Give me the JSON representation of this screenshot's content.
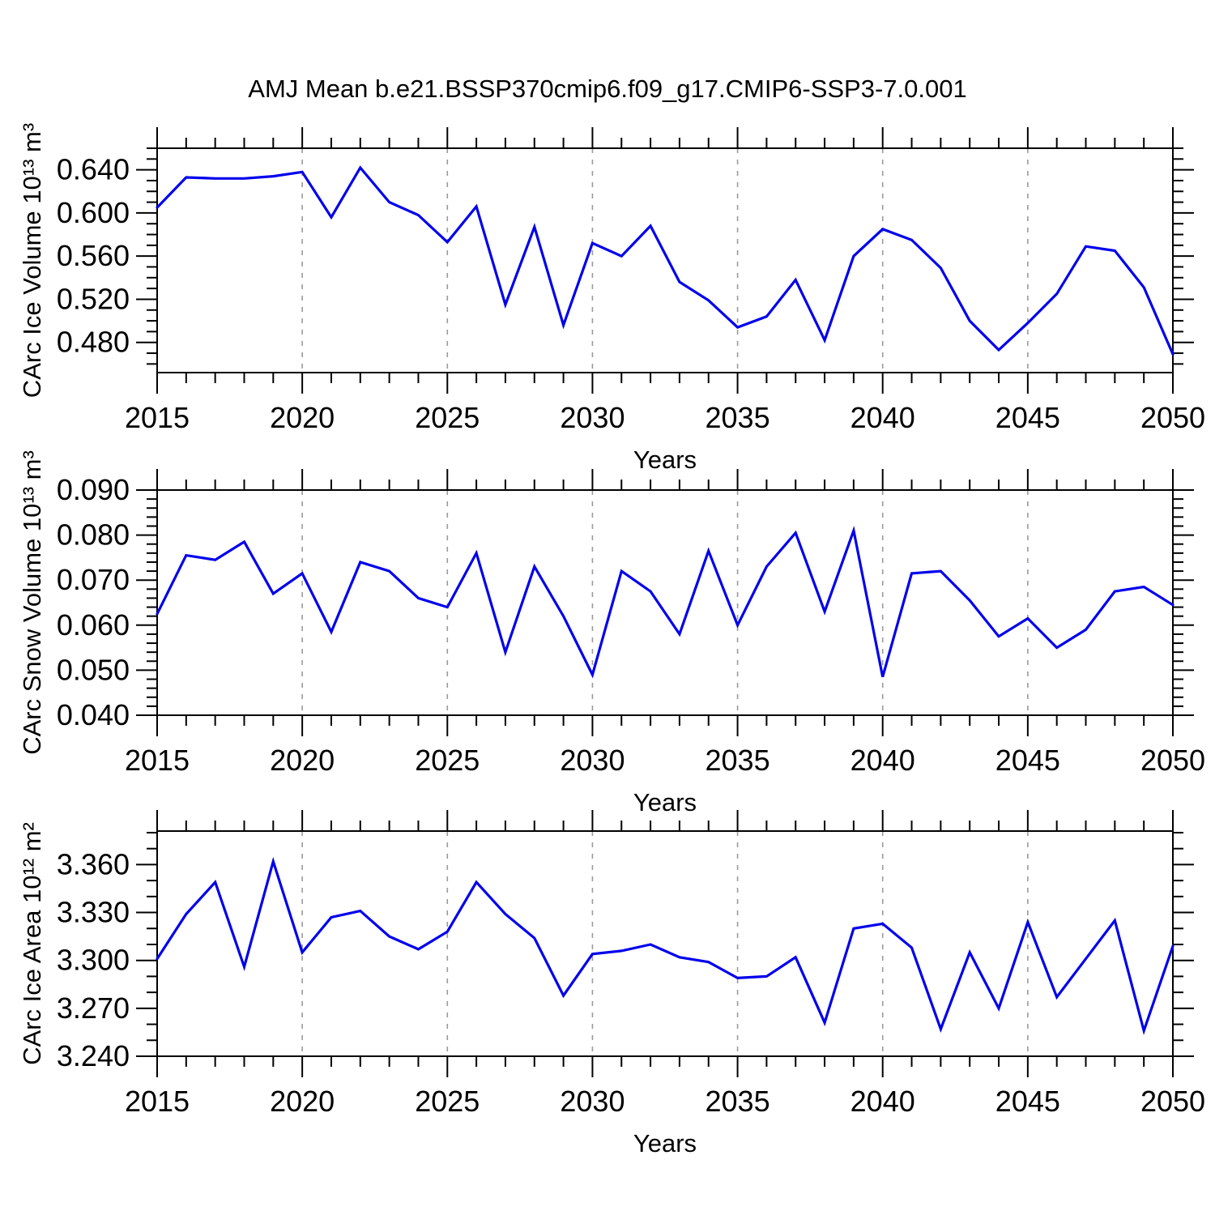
{
  "title": "AMJ Mean b.e21.BSSP370cmip6.f09_g17.CMIP6-SSP3-7.0.001",
  "chart_data": {
    "type": "line",
    "title": "AMJ Mean b.e21.BSSP370cmip6.f09_g17.CMIP6-SSP3-7.0.001",
    "xlabel": "Years",
    "x": [
      2015,
      2016,
      2017,
      2018,
      2019,
      2020,
      2021,
      2022,
      2023,
      2024,
      2025,
      2026,
      2027,
      2028,
      2029,
      2030,
      2031,
      2032,
      2033,
      2034,
      2035,
      2036,
      2037,
      2038,
      2039,
      2040,
      2041,
      2042,
      2043,
      2044,
      2045,
      2046,
      2047,
      2048,
      2049,
      2050
    ],
    "xlim": [
      2015,
      2050
    ],
    "x_major_ticks": [
      2015,
      2020,
      2025,
      2030,
      2035,
      2040,
      2045,
      2050
    ],
    "x_tick_labels": [
      "2015",
      "2020",
      "2025",
      "2030",
      "2035",
      "2040",
      "2045",
      "2050"
    ],
    "gridline_years": [
      2020,
      2025,
      2030,
      2035,
      2040,
      2045
    ],
    "grid_on": true,
    "legend": "none",
    "line_color": "#0000EC",
    "grid_color": "#9a9a9a",
    "axis_color": "#000000",
    "panels": [
      {
        "name": "carc-ice-volume",
        "ylabel": "CArc Ice Volume 10¹³ m³",
        "xlabel": "Years",
        "ylim": [
          0.452,
          0.66
        ],
        "y_major_ticks": [
          0.48,
          0.52,
          0.56,
          0.6,
          0.64
        ],
        "y_tick_labels": [
          "0.480",
          "0.520",
          "0.560",
          "0.600",
          "0.640"
        ],
        "y_minor_step": 0.01,
        "values": [
          0.605,
          0.633,
          0.632,
          0.632,
          0.634,
          0.638,
          0.596,
          0.642,
          0.61,
          0.598,
          0.573,
          0.606,
          0.515,
          0.587,
          0.496,
          0.572,
          0.56,
          0.588,
          0.536,
          0.519,
          0.494,
          0.504,
          0.538,
          0.482,
          0.56,
          0.585,
          0.575,
          0.549,
          0.5,
          0.473,
          0.498,
          0.525,
          0.569,
          0.565,
          0.531,
          0.469
        ]
      },
      {
        "name": "carc-snow-volume",
        "ylabel": "CArc Snow Volume 10¹³ m³",
        "xlabel": "Years",
        "ylim": [
          0.04,
          0.09
        ],
        "y_major_ticks": [
          0.04,
          0.05,
          0.06,
          0.07,
          0.08,
          0.09
        ],
        "y_tick_labels": [
          "0.040",
          "0.050",
          "0.060",
          "0.070",
          "0.080",
          "0.090"
        ],
        "y_minor_step": 0.002,
        "values": [
          0.0625,
          0.0755,
          0.0745,
          0.0785,
          0.067,
          0.0715,
          0.0585,
          0.074,
          0.072,
          0.066,
          0.064,
          0.076,
          0.054,
          0.073,
          0.062,
          0.049,
          0.072,
          0.0675,
          0.058,
          0.0765,
          0.06,
          0.073,
          0.0805,
          0.063,
          0.081,
          0.0485,
          0.0715,
          0.072,
          0.0655,
          0.0575,
          0.0615,
          0.055,
          0.059,
          0.0675,
          0.0685,
          0.0645
        ]
      },
      {
        "name": "carc-ice-area",
        "ylabel": "CArc Ice Area 10¹² m²",
        "xlabel": "Years",
        "ylim": [
          3.24,
          3.381
        ],
        "y_major_ticks": [
          3.24,
          3.27,
          3.3,
          3.33,
          3.36
        ],
        "y_tick_labels": [
          "3.240",
          "3.270",
          "3.300",
          "3.330",
          "3.360"
        ],
        "y_minor_step": 0.01,
        "values": [
          3.301,
          3.329,
          3.349,
          3.296,
          3.362,
          3.305,
          3.327,
          3.331,
          3.315,
          3.307,
          3.318,
          3.349,
          3.329,
          3.314,
          3.278,
          3.304,
          3.306,
          3.31,
          3.302,
          3.299,
          3.289,
          3.29,
          3.302,
          3.261,
          3.32,
          3.323,
          3.308,
          3.257,
          3.305,
          3.27,
          3.324,
          3.277,
          3.301,
          3.325,
          3.256,
          3.309
        ]
      }
    ]
  }
}
